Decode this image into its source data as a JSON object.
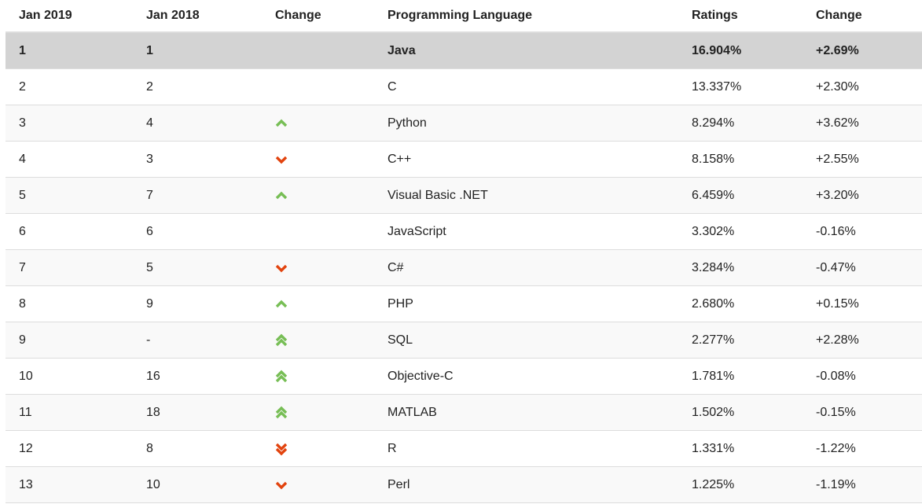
{
  "page": {
    "background": "#ffffff"
  },
  "colors": {
    "up_arrow": "#77be55",
    "down_arrow": "#e2430e",
    "highlight_row_bg": "#d3d3d3",
    "stripe_row_bg": "#f9f9f9",
    "border": "#dddddd",
    "text": "#222222"
  },
  "table": {
    "headers": [
      {
        "label": "Jan 2019"
      },
      {
        "label": "Jan 2018"
      },
      {
        "label": "Change"
      },
      {
        "label": "Programming Language"
      },
      {
        "label": "Ratings"
      },
      {
        "label": "Change"
      }
    ],
    "rows": [
      {
        "rank_2019": "1",
        "rank_2018": "1",
        "change": "none",
        "language": "Java",
        "ratings": "16.904%",
        "ratings_change": "+2.69%",
        "highlighted": true
      },
      {
        "rank_2019": "2",
        "rank_2018": "2",
        "change": "none",
        "language": "C",
        "ratings": "13.337%",
        "ratings_change": "+2.30%",
        "highlighted": false
      },
      {
        "rank_2019": "3",
        "rank_2018": "4",
        "change": "up",
        "language": "Python",
        "ratings": "8.294%",
        "ratings_change": "+3.62%",
        "highlighted": false
      },
      {
        "rank_2019": "4",
        "rank_2018": "3",
        "change": "down",
        "language": "C++",
        "ratings": "8.158%",
        "ratings_change": "+2.55%",
        "highlighted": false
      },
      {
        "rank_2019": "5",
        "rank_2018": "7",
        "change": "up",
        "language": "Visual Basic .NET",
        "ratings": "6.459%",
        "ratings_change": "+3.20%",
        "highlighted": false
      },
      {
        "rank_2019": "6",
        "rank_2018": "6",
        "change": "none",
        "language": "JavaScript",
        "ratings": "3.302%",
        "ratings_change": "-0.16%",
        "highlighted": false
      },
      {
        "rank_2019": "7",
        "rank_2018": "5",
        "change": "down",
        "language": "C#",
        "ratings": "3.284%",
        "ratings_change": "-0.47%",
        "highlighted": false
      },
      {
        "rank_2019": "8",
        "rank_2018": "9",
        "change": "up",
        "language": "PHP",
        "ratings": "2.680%",
        "ratings_change": "+0.15%",
        "highlighted": false
      },
      {
        "rank_2019": "9",
        "rank_2018": "-",
        "change": "double-up",
        "language": "SQL",
        "ratings": "2.277%",
        "ratings_change": "+2.28%",
        "highlighted": false
      },
      {
        "rank_2019": "10",
        "rank_2018": "16",
        "change": "double-up",
        "language": "Objective-C",
        "ratings": "1.781%",
        "ratings_change": "-0.08%",
        "highlighted": false
      },
      {
        "rank_2019": "11",
        "rank_2018": "18",
        "change": "double-up",
        "language": "MATLAB",
        "ratings": "1.502%",
        "ratings_change": "-0.15%",
        "highlighted": false
      },
      {
        "rank_2019": "12",
        "rank_2018": "8",
        "change": "double-down",
        "language": "R",
        "ratings": "1.331%",
        "ratings_change": "-1.22%",
        "highlighted": false
      },
      {
        "rank_2019": "13",
        "rank_2018": "10",
        "change": "down",
        "language": "Perl",
        "ratings": "1.225%",
        "ratings_change": "-1.19%",
        "highlighted": false
      }
    ]
  }
}
